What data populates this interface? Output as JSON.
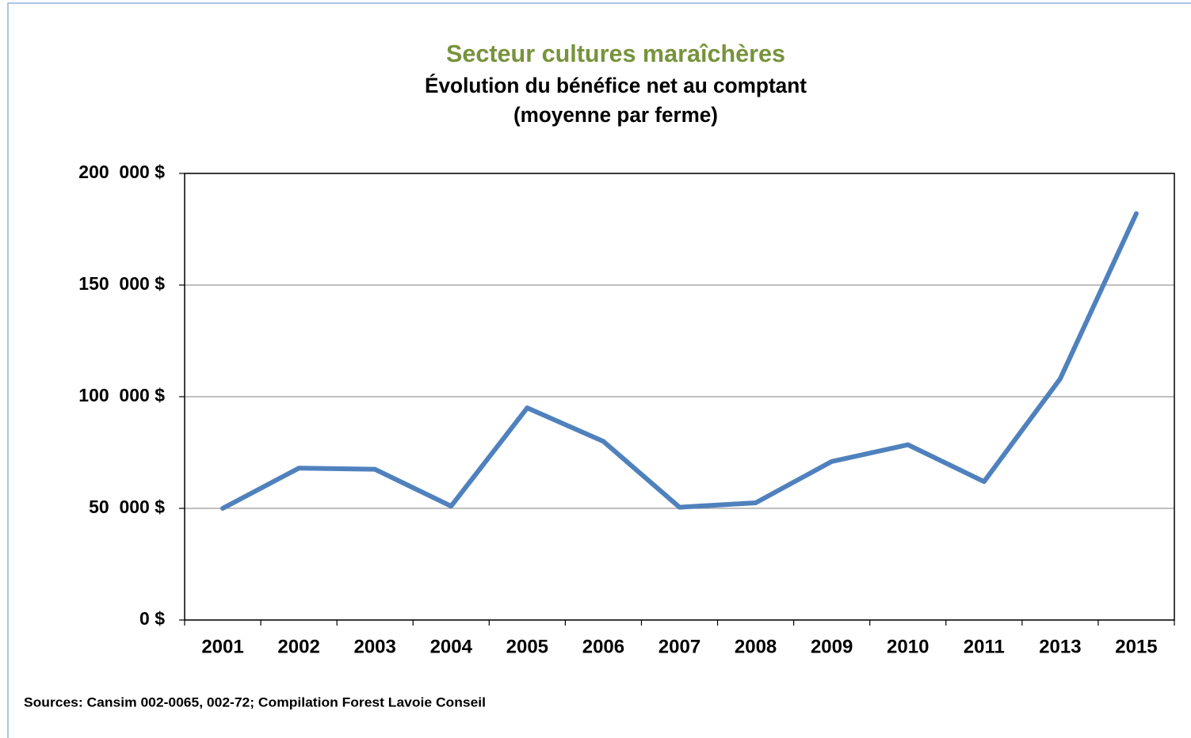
{
  "chart_data": {
    "type": "line",
    "title": "Secteur cultures maraîchères",
    "subtitle": [
      "Évolution du bénéfice net au comptant",
      "(moyenne par ferme)"
    ],
    "source": "Sources: Cansim 002-0065, 002-72; Compilation Forest Lavoie Conseil",
    "categories": [
      "2001",
      "2002",
      "2003",
      "2004",
      "2005",
      "2006",
      "2007",
      "2008",
      "2009",
      "2010",
      "2011",
      "2013",
      "2015"
    ],
    "series": [
      {
        "name": "Bénéfice net au comptant",
        "color": "#4f81bd",
        "values": [
          50000,
          68000,
          67500,
          51000,
          95000,
          80000,
          50500,
          52500,
          71000,
          78500,
          62000,
          108000,
          182000
        ]
      }
    ],
    "ylim": [
      0,
      200000
    ],
    "yticks": [
      {
        "value": 0,
        "label": "0 $"
      },
      {
        "value": 50000,
        "label": "50  000 $"
      },
      {
        "value": 100000,
        "label": "100  000 $"
      },
      {
        "value": 150000,
        "label": "150  000 $"
      },
      {
        "value": 200000,
        "label": "200  000 $"
      }
    ],
    "grid": true
  }
}
